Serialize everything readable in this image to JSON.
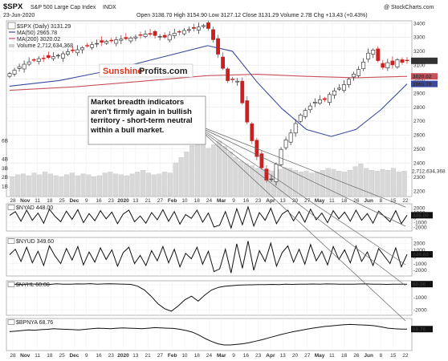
{
  "header": {
    "symbol": "$SPX",
    "index_name": "S&P 500 Large Cap Index",
    "exchange": "INDX",
    "date": "23-Jun-2020",
    "quote": "Open 3138.70  High 3154.90  Low 3127.12  Close 3131.29  Volume 2.7B  Chg +13.43 (+0.43%)",
    "watermark": "@ StockCharts.com"
  },
  "main_legend": {
    "price": "$SPX (Daily) 3131.29",
    "ma50": "MA(50) 2965.78",
    "ma200": "MA(200) 3020.02",
    "volume": "Volume 2,712,634,368"
  },
  "brand": {
    "text1": "Sunshine",
    "text2": "Profits.com"
  },
  "annotation": "Market breadth indicators aren't firmly again in bullish territory - short-term neutral within a bull market.",
  "x_labels": [
    "28",
    "Nov",
    "11",
    "18",
    "25",
    "Dec",
    "9",
    "16",
    "23",
    "2020",
    "13",
    "21",
    "27",
    "Feb",
    "10",
    "18",
    "24",
    "Mar",
    "9",
    "16",
    "23",
    "Apr",
    "13",
    "20",
    "27",
    "May",
    "11",
    "18",
    "26",
    "Jun",
    "8",
    "15",
    "22"
  ],
  "colors": {
    "up": "#222222",
    "down": "#cc2020",
    "ma50": "#3a4aa0",
    "ma200": "#c8505a",
    "volume": "#d8d8d8",
    "brand_red": "#e0341e",
    "brand_dark": "#222222"
  },
  "chart_data": [
    {
      "type": "candlestick",
      "name": "$SPX (Daily)",
      "ylim": [
        2200,
        3400
      ],
      "y_ticks": [
        "3400",
        "3300",
        "3200",
        "3100",
        "3000",
        "2900",
        "2800",
        "2700",
        "2600",
        "2500",
        "2400",
        "2300",
        "2200"
      ],
      "price_labels": [
        "3131.29",
        "3020.02",
        "2965.78"
      ],
      "ohlc_path": [
        [
          0,
          3040
        ],
        [
          6,
          3090
        ],
        [
          11,
          3120
        ],
        [
          16,
          3145
        ],
        [
          21,
          3150
        ],
        [
          26,
          3160
        ],
        [
          31,
          3175
        ],
        [
          36,
          3200
        ],
        [
          41,
          3210
        ],
        [
          46,
          3235
        ],
        [
          51,
          3250
        ],
        [
          56,
          3265
        ],
        [
          61,
          3275
        ],
        [
          66,
          3285
        ],
        [
          71,
          3290
        ],
        [
          76,
          3300
        ],
        [
          80,
          3320
        ],
        [
          84,
          3325
        ],
        [
          89,
          3310
        ],
        [
          94,
          3300
        ],
        [
          99,
          3325
        ],
        [
          104,
          3345
        ],
        [
          109,
          3355
        ],
        [
          114,
          3370
        ],
        [
          118,
          3385
        ],
        [
          120,
          3370
        ],
        [
          122,
          3340
        ],
        [
          125,
          3220
        ],
        [
          128,
          3130
        ],
        [
          131,
          3010
        ],
        [
          134,
          2960
        ],
        [
          137,
          3050
        ],
        [
          140,
          2880
        ],
        [
          143,
          2740
        ],
        [
          146,
          2600
        ],
        [
          149,
          2470
        ],
        [
          152,
          2390
        ],
        [
          155,
          2300
        ],
        [
          157,
          2240
        ],
        [
          160,
          2320
        ],
        [
          163,
          2450
        ],
        [
          166,
          2540
        ],
        [
          169,
          2590
        ],
        [
          172,
          2640
        ],
        [
          175,
          2730
        ],
        [
          178,
          2760
        ],
        [
          181,
          2800
        ],
        [
          184,
          2820
        ],
        [
          187,
          2860
        ],
        [
          190,
          2840
        ],
        [
          193,
          2880
        ],
        [
          196,
          2910
        ],
        [
          199,
          2930
        ],
        [
          202,
          2950
        ],
        [
          205,
          2990
        ],
        [
          208,
          3030
        ],
        [
          211,
          3060
        ],
        [
          214,
          3110
        ],
        [
          217,
          3180
        ],
        [
          220,
          3220
        ],
        [
          223,
          3140
        ],
        [
          226,
          3080
        ],
        [
          229,
          3120
        ],
        [
          232,
          3100
        ],
        [
          235,
          3140
        ],
        [
          238,
          3120
        ],
        [
          241,
          3131.29
        ]
      ],
      "ma50": [
        [
          0,
          2950
        ],
        [
          30,
          2990
        ],
        [
          60,
          3060
        ],
        [
          90,
          3150
        ],
        [
          120,
          3240
        ],
        [
          135,
          3200
        ],
        [
          150,
          2980
        ],
        [
          165,
          2790
        ],
        [
          180,
          2640
        ],
        [
          195,
          2590
        ],
        [
          210,
          2640
        ],
        [
          225,
          2780
        ],
        [
          241,
          2965.78
        ]
      ],
      "ma200": [
        [
          0,
          2920
        ],
        [
          40,
          2945
        ],
        [
          80,
          2985
        ],
        [
          120,
          3025
        ],
        [
          150,
          3035
        ],
        [
          180,
          3020
        ],
        [
          210,
          3010
        ],
        [
          241,
          3020.02
        ]
      ],
      "volume_ticks": [
        "6B",
        "4B",
        "3B",
        "2B",
        "1B"
      ],
      "volume_label": "2,712,634,368",
      "volume": [
        2.1,
        2.3,
        2.4,
        2.2,
        2.5,
        2.3,
        2.6,
        2.4,
        2.2,
        2.1,
        2.3,
        2.5,
        2.2,
        2.4,
        2.3,
        2.1,
        2.2,
        2.5,
        2.6,
        2.4,
        2.3,
        2.2,
        2.4,
        2.6,
        2.8,
        2.5,
        2.3,
        2.4,
        2.6,
        2.5,
        3.6,
        4.2,
        4.8,
        5.5,
        6.0,
        5.8,
        5.2,
        5.6,
        6.0,
        5.4,
        4.8,
        4.2,
        3.8,
        3.5,
        3.3,
        3.0,
        2.9,
        2.8,
        2.7,
        2.9,
        3.1,
        3.0,
        2.8,
        2.6,
        2.7,
        2.5,
        2.6,
        2.8,
        3.0,
        2.9,
        2.7,
        2.6,
        2.8,
        3.2,
        3.5,
        3.0,
        2.8,
        2.7,
        2.9,
        2.8,
        3.0,
        2.6,
        2.7
      ]
    },
    {
      "type": "line",
      "name": "$NYAD",
      "legend": "$NYAD 448.00",
      "last_value": "448.00",
      "y_ticks": [
        "2000",
        "1000",
        "0",
        "-1000",
        "-2000"
      ],
      "ylim": [
        -2500,
        2500
      ],
      "values": [
        400,
        1200,
        -800,
        1500,
        -600,
        900,
        -1200,
        1700,
        200,
        -900,
        1300,
        -400,
        1600,
        -1100,
        800,
        -700,
        1400,
        -300,
        1100,
        -1300,
        700,
        1500,
        -900,
        300,
        -1200,
        1000,
        -500,
        1600,
        -800,
        1200,
        -1400,
        600,
        -200,
        1500,
        -1000,
        900,
        -2000,
        -1600,
        1200,
        -2200,
        1800,
        -1500,
        2200,
        -1800,
        1000,
        -600,
        1900,
        -1300,
        700,
        1500,
        -700,
        1200,
        -1000,
        1700,
        -500,
        900,
        -1100,
        1400,
        -300,
        1100,
        -800,
        1500,
        -600,
        800,
        -1200,
        1300,
        200,
        -900,
        1400,
        -1300,
        448
      ]
    },
    {
      "type": "line",
      "name": "$NYUD",
      "legend": "$NYUD 349.60",
      "last_value": "349.60",
      "y_ticks": [
        "2000",
        "1000",
        "0",
        "-1000",
        "-2000"
      ],
      "ylim": [
        -2600,
        2600
      ],
      "values": [
        300,
        1100,
        -700,
        1400,
        -900,
        800,
        -1300,
        1600,
        100,
        -1000,
        1200,
        -500,
        1500,
        -1200,
        700,
        -800,
        1300,
        -400,
        1000,
        -1400,
        600,
        1400,
        -1000,
        200,
        -1300,
        900,
        -600,
        1500,
        -900,
        1100,
        -1500,
        500,
        -300,
        1400,
        -1100,
        800,
        -2200,
        -1800,
        1100,
        -2400,
        1900,
        -1700,
        2300,
        -2000,
        900,
        -700,
        2000,
        -1400,
        600,
        1600,
        -800,
        1100,
        -1100,
        1800,
        -600,
        800,
        -1200,
        1500,
        -400,
        1000,
        -900,
        1600,
        -700,
        700,
        -1300,
        1200,
        100,
        -1000,
        1300,
        -1500,
        350
      ]
    },
    {
      "type": "line",
      "name": "$NYHL",
      "legend": "$NYHL 60.00",
      "last_value": "60.00",
      "y_ticks": [
        "0",
        "-1000",
        "-2000"
      ],
      "ylim": [
        -2300,
        200
      ],
      "values": [
        40,
        60,
        30,
        80,
        50,
        70,
        40,
        90,
        60,
        50,
        80,
        70,
        100,
        60,
        80,
        90,
        70,
        60,
        40,
        -100,
        -400,
        -900,
        -1500,
        -1900,
        -2100,
        -1700,
        -1200,
        -900,
        -1300,
        -800,
        -400,
        -200,
        -100,
        -60,
        -20,
        0,
        10,
        20,
        30,
        40,
        30,
        50,
        40,
        60,
        50,
        70,
        60,
        80,
        70,
        60,
        50,
        60,
        70,
        80,
        60,
        50,
        40,
        60,
        55,
        60
      ]
    },
    {
      "type": "line",
      "name": "$BPNYA",
      "legend": "$BPNYA 68.76",
      "last_value": "68.76",
      "ylim": [
        0,
        100
      ],
      "values": [
        60,
        62,
        64,
        66,
        65,
        67,
        68,
        70,
        69,
        68,
        67,
        66,
        68,
        70,
        72,
        71,
        70,
        72,
        73,
        72,
        71,
        70,
        72,
        74,
        73,
        72,
        71,
        68,
        64,
        58,
        48,
        36,
        26,
        18,
        14,
        14,
        16,
        18,
        22,
        27,
        32,
        38,
        44,
        50,
        55,
        60,
        64,
        68,
        72,
        75,
        78,
        80,
        82,
        84,
        85,
        84,
        83,
        82,
        80,
        76,
        72,
        70,
        69,
        68.76
      ]
    }
  ]
}
